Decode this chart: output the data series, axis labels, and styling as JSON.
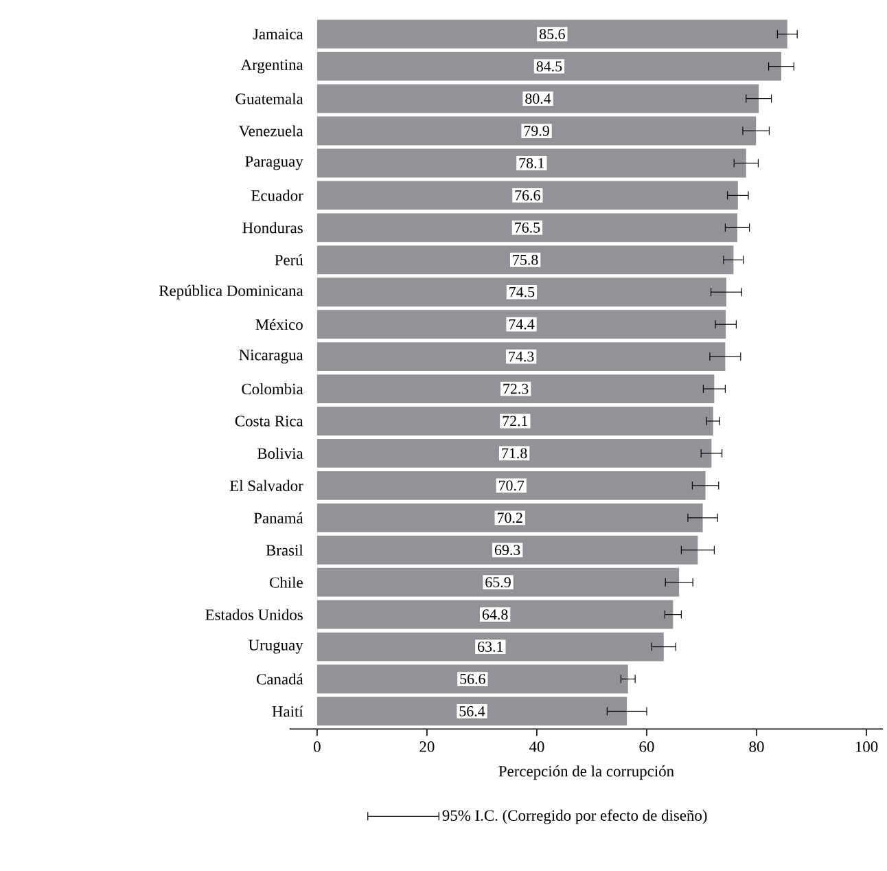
{
  "chart_data": {
    "type": "bar",
    "orientation": "horizontal",
    "xlabel": "Percepción de la corrupción",
    "categories": [
      "Jamaica",
      "Argentina",
      "Guatemala",
      "Venezuela",
      "Paraguay",
      "Ecuador",
      "Honduras",
      "Perú",
      "República Dominicana",
      "México",
      "Nicaragua",
      "Colombia",
      "Costa Rica",
      "Bolivia",
      "El Salvador",
      "Panamá",
      "Brasil",
      "Chile",
      "Estados Unidos",
      "Uruguay",
      "Canadá",
      "Haití"
    ],
    "series": [
      {
        "name": "95% I.C. (Corregido por efecto de diseño)",
        "color": "#929396",
        "values": [
          85.6,
          84.5,
          80.4,
          79.9,
          78.1,
          76.6,
          76.5,
          75.8,
          74.5,
          74.4,
          74.3,
          72.3,
          72.1,
          71.8,
          70.7,
          70.2,
          69.3,
          65.9,
          64.8,
          63.1,
          56.6,
          56.4
        ],
        "errors": [
          1.8,
          2.3,
          2.3,
          2.4,
          2.2,
          1.9,
          2.2,
          1.8,
          2.8,
          1.9,
          2.8,
          2.0,
          1.2,
          1.9,
          2.4,
          2.7,
          3.0,
          2.5,
          1.5,
          2.2,
          1.3,
          3.6
        ]
      }
    ],
    "data_labels": true,
    "legend": "bottom",
    "xlim": [
      -5,
      103
    ],
    "xticks": [
      0,
      20,
      40,
      60,
      80,
      100
    ]
  }
}
